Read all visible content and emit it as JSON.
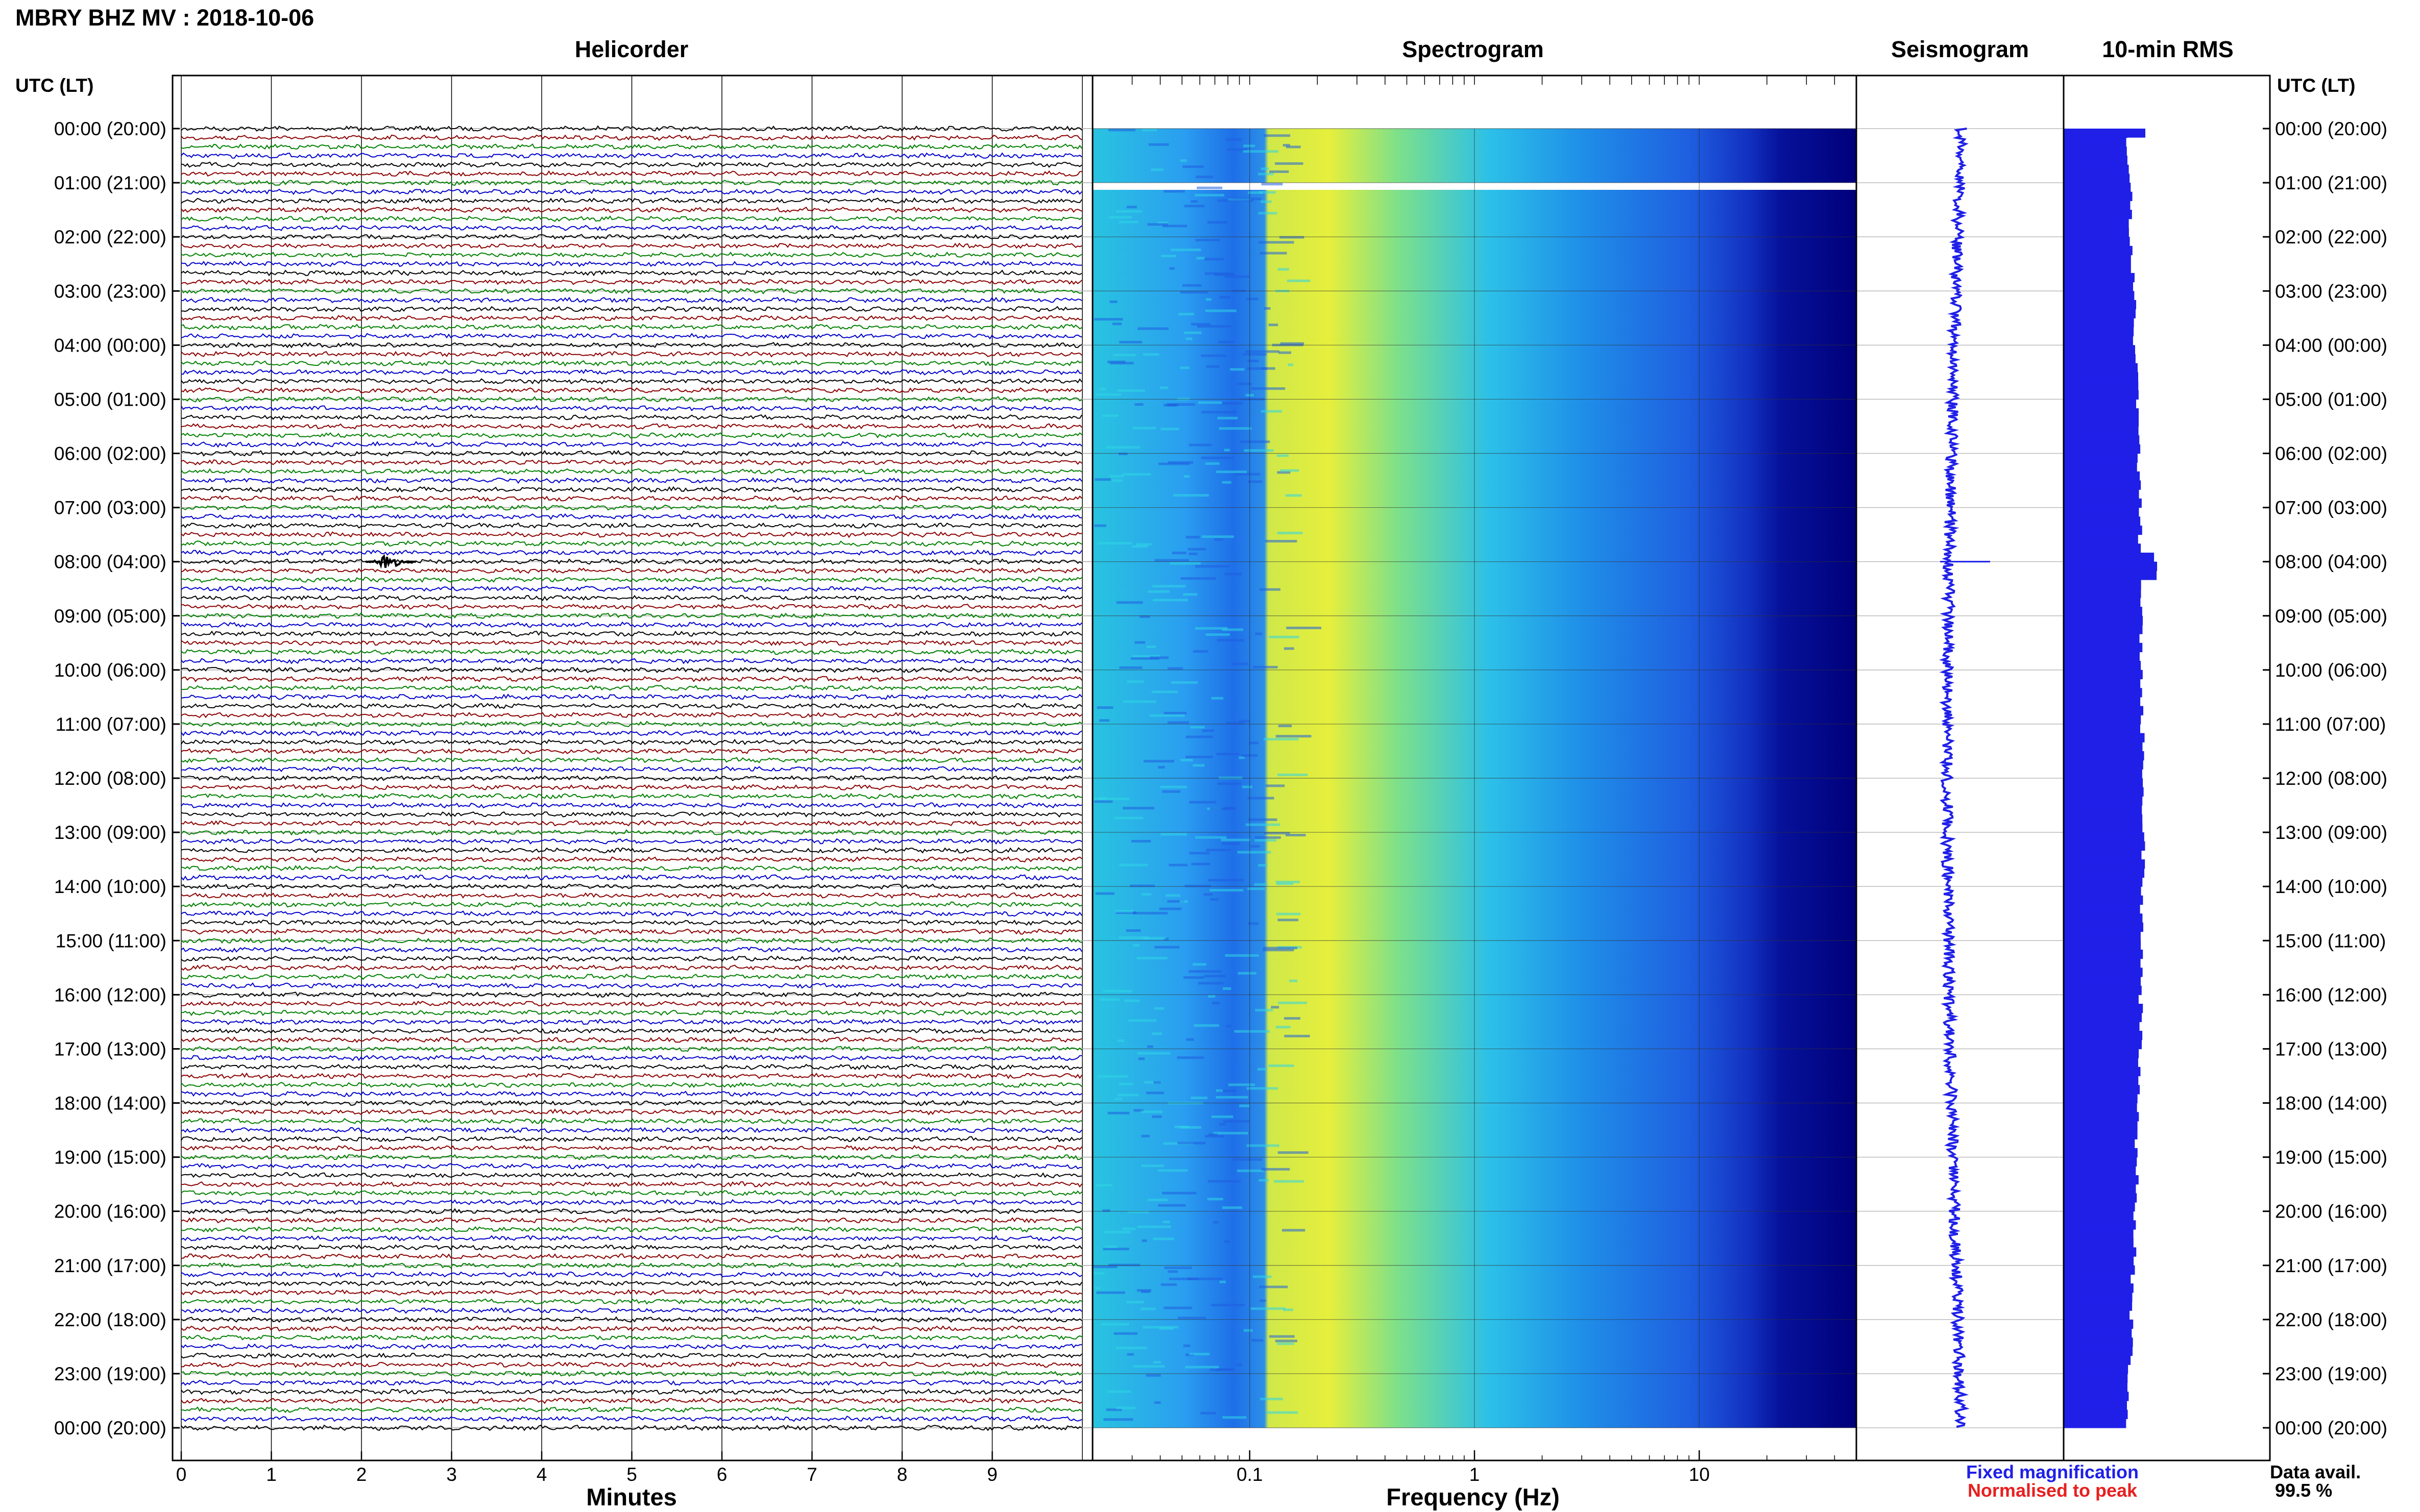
{
  "header": {
    "title": "MBRY BHZ MV : 2018-10-06"
  },
  "panels": {
    "helicorder": "Helicorder",
    "spectrogram": "Spectrogram",
    "seismogram": "Seismogram",
    "rms": "10-min RMS"
  },
  "axis_headers": {
    "left": "UTC (LT)",
    "right": "UTC (LT)"
  },
  "footer": {
    "fixed_mag": "Fixed magnification",
    "normalised": "Normalised to peak",
    "data_avail_label": "Data avail.",
    "data_avail_value": "99.5 %"
  },
  "colors": {
    "trace_cycle": [
      "#000000",
      "#8b0000",
      "#008000",
      "#0000cd"
    ],
    "spectrogram_colormap": [
      "#00008b",
      "#1f4fd6",
      "#2ab0f0",
      "#29e0d8",
      "#7cf07a",
      "#e8f040"
    ],
    "seismogram": "#1f1fe8",
    "rms": "#1f1fe8",
    "fixed_mag_text": "#1f1fe8",
    "normalised_text": "#e81f1f"
  },
  "chart_data": [
    {
      "type": "line",
      "name": "helicorder",
      "title": "Helicorder",
      "xlabel": "Minutes",
      "x_ticks": [
        0,
        1,
        2,
        3,
        4,
        5,
        6,
        7,
        8,
        9
      ],
      "xlim": [
        0,
        10
      ],
      "rows_per_hour": 6,
      "hours": 24,
      "y_tick_labels": [
        "00:00 (20:00)",
        "01:00 (21:00)",
        "02:00 (22:00)",
        "03:00 (23:00)",
        "04:00 (00:00)",
        "05:00 (01:00)",
        "06:00 (02:00)",
        "07:00 (03:00)",
        "08:00 (04:00)",
        "09:00 (05:00)",
        "10:00 (06:00)",
        "11:00 (07:00)",
        "12:00 (08:00)",
        "13:00 (09:00)",
        "14:00 (10:00)",
        "15:00 (11:00)",
        "16:00 (12:00)",
        "17:00 (13:00)",
        "18:00 (14:00)",
        "19:00 (15:00)",
        "20:00 (16:00)",
        "21:00 (17:00)",
        "22:00 (18:00)",
        "23:00 (19:00)",
        "00:00 (20:00)"
      ],
      "events": [
        {
          "utc": "08:00",
          "minute": 2.3
        }
      ]
    },
    {
      "type": "heatmap",
      "name": "spectrogram",
      "title": "Spectrogram",
      "xlabel": "Frequency (Hz)",
      "x_scale": "log",
      "xlim": [
        0.02,
        50
      ],
      "x_tick_labels": [
        "0.1",
        "1",
        "10"
      ],
      "gap_utc": "01:00"
    },
    {
      "type": "line",
      "name": "seismogram",
      "title": "Seismogram",
      "caption": "Fixed magnification"
    },
    {
      "type": "bar",
      "name": "rms",
      "title": "10-min RMS",
      "orientation": "horizontal",
      "caption": "Normalised to peak"
    }
  ]
}
